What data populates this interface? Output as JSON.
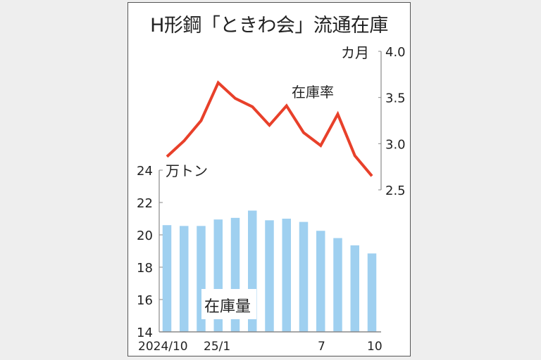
{
  "title": "H形鋼「ときわ会」流通在庫",
  "colors": {
    "bar": "#9fd0f0",
    "line": "#e8402a",
    "axis": "#888888",
    "text": "#222222"
  },
  "left_axis": {
    "unit": "万トン",
    "ticks": [
      "24",
      "22",
      "20",
      "18",
      "16",
      "14"
    ]
  },
  "right_axis": {
    "unit": "カ月",
    "ticks": [
      "4.0",
      "3.5",
      "3.0",
      "2.5"
    ]
  },
  "x_axis": {
    "labels": [
      "2024/10",
      "25/1",
      "7",
      "10"
    ]
  },
  "labels": {
    "line_series": "在庫率",
    "bar_series": "在庫量"
  },
  "chart_data": {
    "type": "bar+line",
    "title": "H形鋼「ときわ会」流通在庫",
    "categories": [
      "2024/10",
      "2024/11",
      "2024/12",
      "2025/1",
      "2025/2",
      "2025/3",
      "2025/4",
      "2025/5",
      "2025/6",
      "2025/7",
      "2025/8",
      "2025/9",
      "2025/10"
    ],
    "tick_labels_shown": [
      "2024/10",
      "25/1",
      "7",
      "10"
    ],
    "series": [
      {
        "name": "在庫量",
        "type": "bar",
        "axis": "left",
        "unit": "万トン",
        "values": [
          20.6,
          20.55,
          20.55,
          20.95,
          21.05,
          21.5,
          20.9,
          21.0,
          20.8,
          20.25,
          19.8,
          19.35,
          18.85
        ]
      },
      {
        "name": "在庫率",
        "type": "line",
        "axis": "right",
        "unit": "カ月",
        "values": [
          2.86,
          3.03,
          3.25,
          3.66,
          3.49,
          3.4,
          3.2,
          3.41,
          3.12,
          2.98,
          3.32,
          2.87,
          2.65
        ]
      }
    ],
    "ylabel_left": "万トン",
    "ylim_left": [
      14,
      24
    ],
    "ylabel_right": "カ月",
    "ylim_right": [
      2.5,
      4.0
    ],
    "grid": false,
    "legend": "inline labels"
  }
}
